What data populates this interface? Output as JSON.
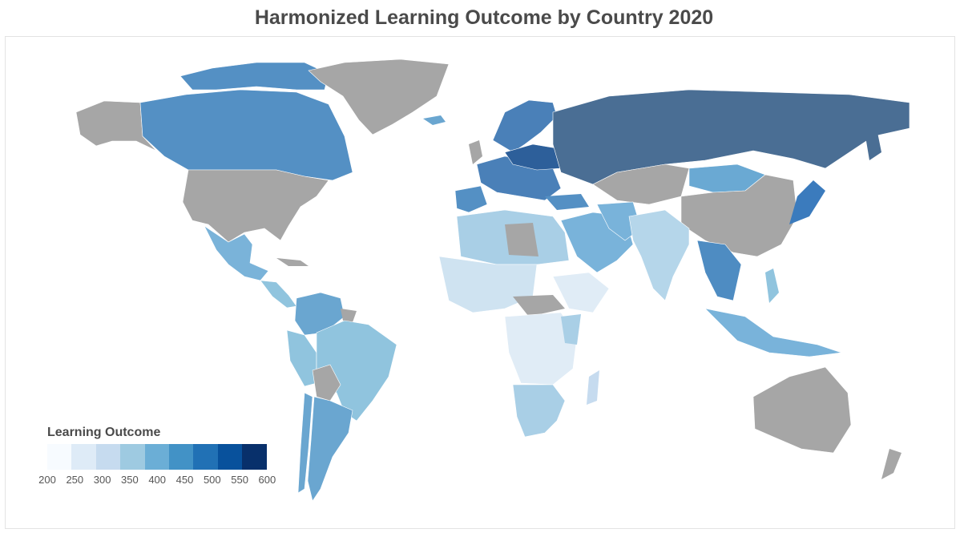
{
  "title": "Harmonized Learning Outcome by Country 2020",
  "legend": {
    "title": "Learning Outcome",
    "ticks": [
      "200",
      "250",
      "300",
      "350",
      "400",
      "450",
      "500",
      "550",
      "600"
    ],
    "colors": [
      "#f7fbff",
      "#deebf7",
      "#c6dbef",
      "#9ecae1",
      "#6baed6",
      "#4292c6",
      "#2171b5",
      "#08519c",
      "#08306b"
    ]
  },
  "colors": {
    "no_data": "#a6a6a6",
    "russia": "#4a6e94",
    "canada": "#5490c4",
    "scandinavia": "#4a80b8",
    "europe_east": "#2d5f9a",
    "south_america": "#90c4de",
    "argentina": "#6aa6d0",
    "africa_light": "#e0ecf6",
    "africa_mid": "#a9cfe6",
    "africa_west": "#cfe3f1",
    "middle_east": "#79b3da",
    "india": "#b5d6ea",
    "se_asia": "#4e8cc2",
    "mexico": "#7ab3d9",
    "japan": "#3b7bbd",
    "mongolia": "#6aa9d3"
  }
}
